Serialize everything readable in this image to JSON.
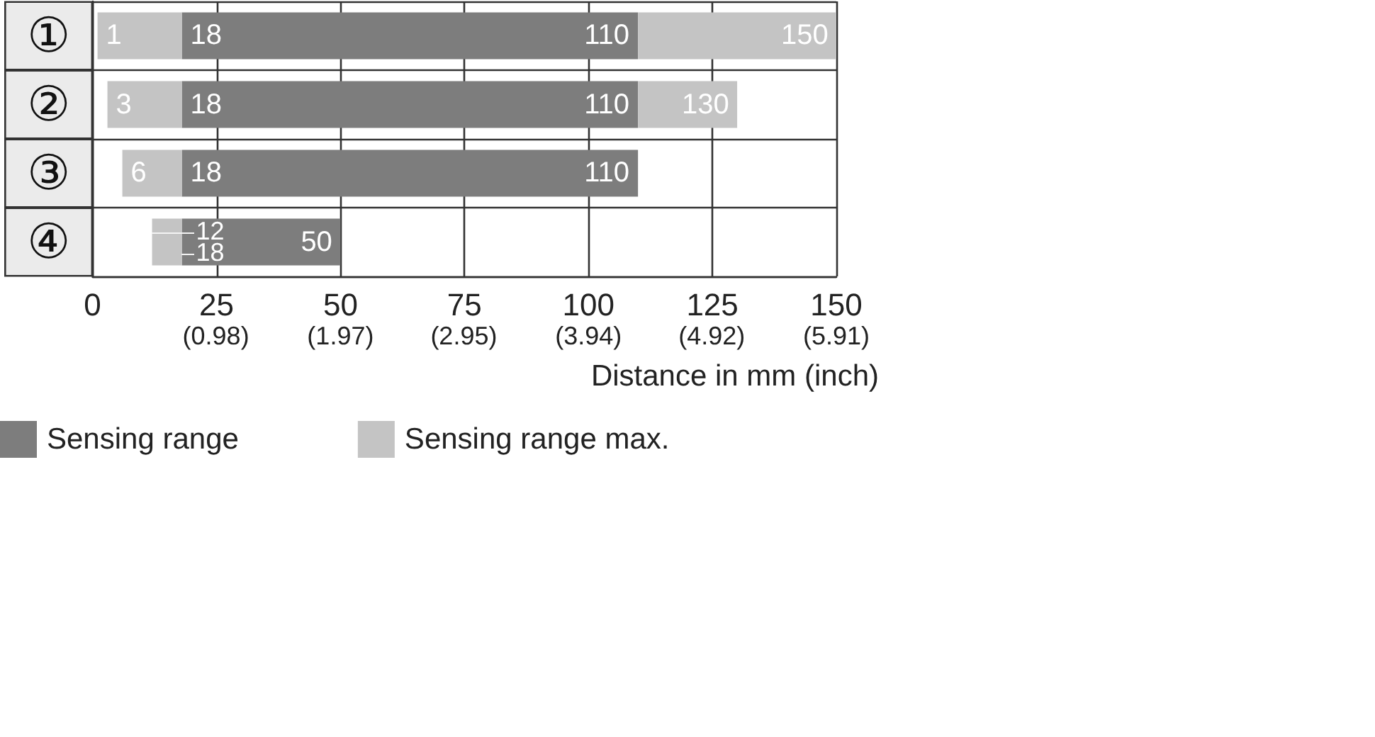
{
  "chart_data": {
    "type": "bar",
    "orientation": "horizontal",
    "categories": [
      "①",
      "②",
      "③",
      "④"
    ],
    "series": [
      {
        "name": "Sensing range",
        "color": "#7d7d7d",
        "base": [
          18,
          18,
          18,
          18
        ],
        "values": [
          92,
          92,
          92,
          32
        ]
      },
      {
        "name": "Sensing range max.",
        "color": "#c4c4c4",
        "base": [
          1,
          3,
          6,
          12
        ],
        "values": [
          17,
          15,
          12,
          6
        ]
      },
      {
        "color": "#c4c4c4",
        "base": [
          110,
          110,
          null,
          null
        ],
        "values": [
          40,
          20,
          null,
          null
        ]
      }
    ],
    "xlim": [
      0,
      150
    ],
    "xticks": [
      0,
      25,
      50,
      75,
      100,
      125,
      150
    ],
    "x2lim": [
      0,
      5.91
    ],
    "x2ticks": [
      {
        "value": 0.98,
        "label": "(0.98)"
      },
      {
        "value": 1.97,
        "label": "(1.97)"
      },
      {
        "value": 2.95,
        "label": "(2.95)"
      },
      {
        "value": 3.94,
        "label": "(3.94)"
      },
      {
        "value": 4.92,
        "label": "(4.92)"
      },
      {
        "value": 5.91,
        "label": "(5.91)"
      }
    ],
    "xlabel": "Distance in mm (inch)",
    "grid": true,
    "legend": "bottom left",
    "annotations": [
      {
        "text": "1",
        "x": 1,
        "y": "①"
      },
      {
        "text": "18",
        "x": 18,
        "y": "①"
      },
      {
        "text": "110",
        "x": 110,
        "y": "①"
      },
      {
        "text": "150",
        "x": 150,
        "y": "①"
      },
      {
        "text": "3",
        "x": 3,
        "y": "②"
      },
      {
        "text": "18",
        "x": 18,
        "y": "②"
      },
      {
        "text": "110",
        "x": 110,
        "y": "②"
      },
      {
        "text": "130",
        "x": 130,
        "y": "②"
      },
      {
        "text": "6",
        "x": 6,
        "y": "③"
      },
      {
        "text": "18",
        "x": 18,
        "y": "③"
      },
      {
        "text": "110",
        "x": 110,
        "y": "③"
      },
      {
        "text": "12",
        "x": 12,
        "y": "④"
      },
      {
        "text": "18",
        "x": 18,
        "y": "④"
      },
      {
        "text": "50",
        "x": 50,
        "y": "④"
      }
    ]
  }
}
